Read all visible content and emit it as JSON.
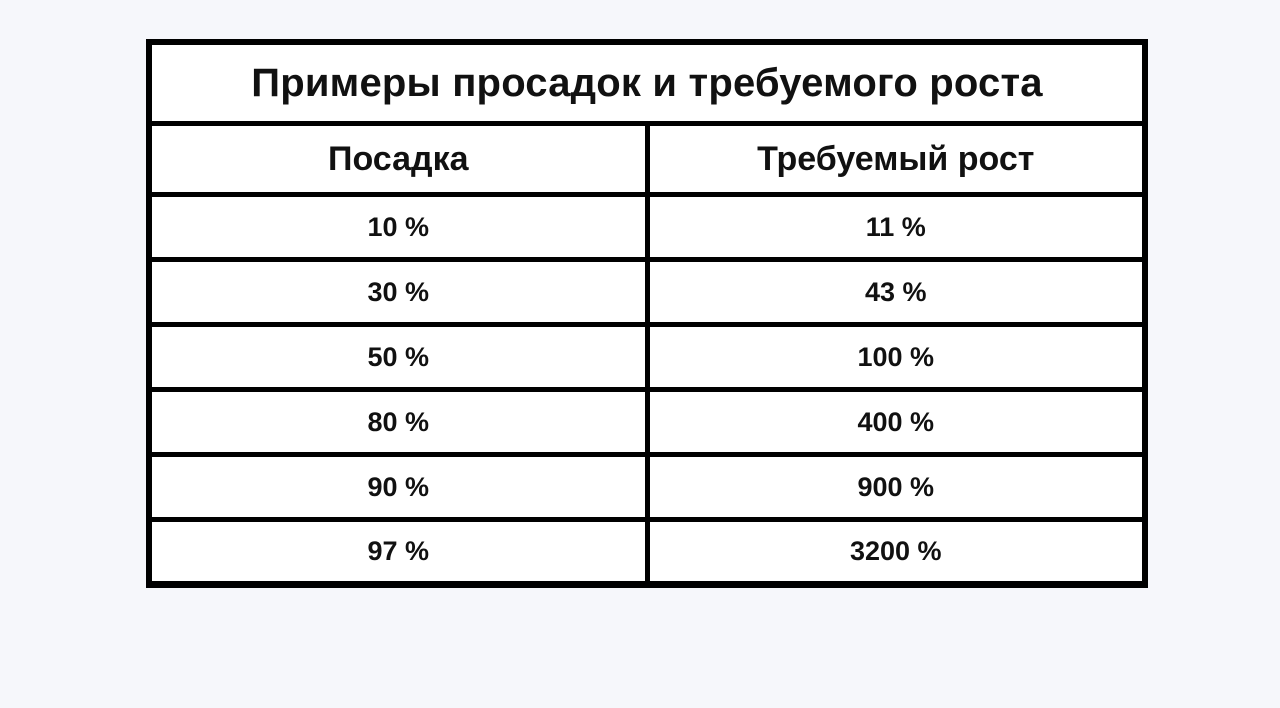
{
  "table": {
    "title": "Примеры просадок и требуемого роста",
    "headers": [
      "Посадка",
      "Требуемый рост"
    ],
    "rows": [
      [
        "10 %",
        "11 %"
      ],
      [
        "30 %",
        "43 %"
      ],
      [
        "50 %",
        "100 %"
      ],
      [
        "80 %",
        "400 %"
      ],
      [
        "90 %",
        "900 %"
      ],
      [
        "97 %",
        "3200 %"
      ]
    ]
  }
}
